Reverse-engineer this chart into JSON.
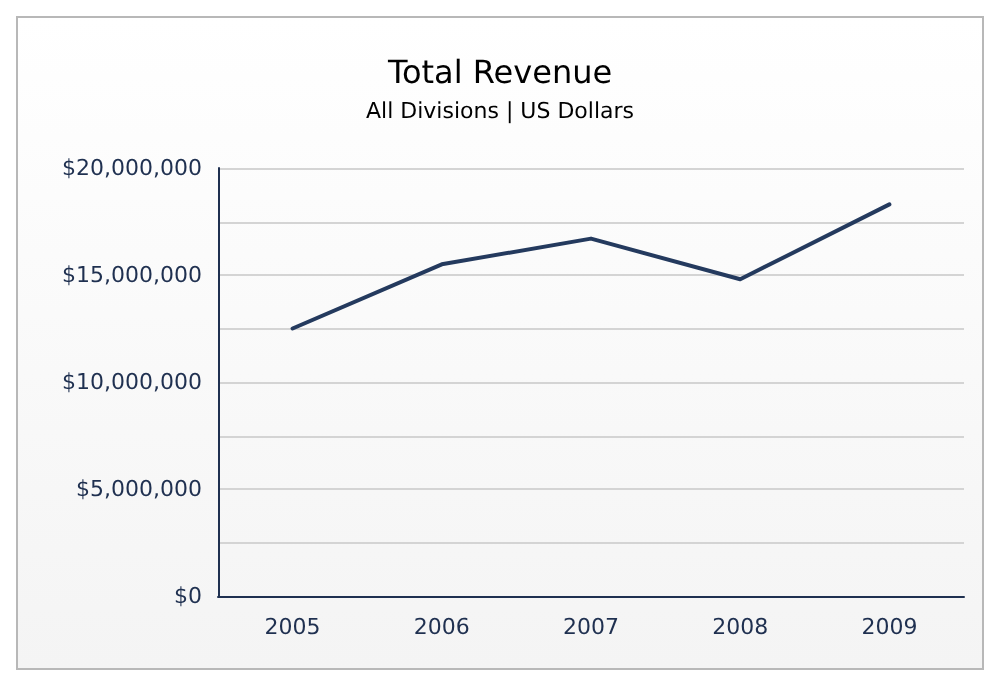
{
  "chart_data": {
    "type": "line",
    "title": "Total Revenue",
    "subtitle": "All Divisions | US Dollars",
    "categories": [
      "2005",
      "2006",
      "2007",
      "2008",
      "2009"
    ],
    "series": [
      {
        "color": "#243a5e",
        "values": [
          12500000,
          15500000,
          16700000,
          14800000,
          18300000
        ]
      }
    ],
    "ylim": [
      0,
      20000000
    ],
    "yticks": [
      {
        "value": 0,
        "label": "$0"
      },
      {
        "value": 2500000,
        "label": null
      },
      {
        "value": 5000000,
        "label": "$5,000,000"
      },
      {
        "value": 7500000,
        "label": null
      },
      {
        "value": 10000000,
        "label": "$10,000,000"
      },
      {
        "value": 12500000,
        "label": null
      },
      {
        "value": 15000000,
        "label": "$15,000,000"
      },
      {
        "value": 17500000,
        "label": null
      },
      {
        "value": 20000000,
        "label": "$20,000,000"
      }
    ],
    "grid": "y",
    "marker": "none",
    "line_style": "solid"
  }
}
